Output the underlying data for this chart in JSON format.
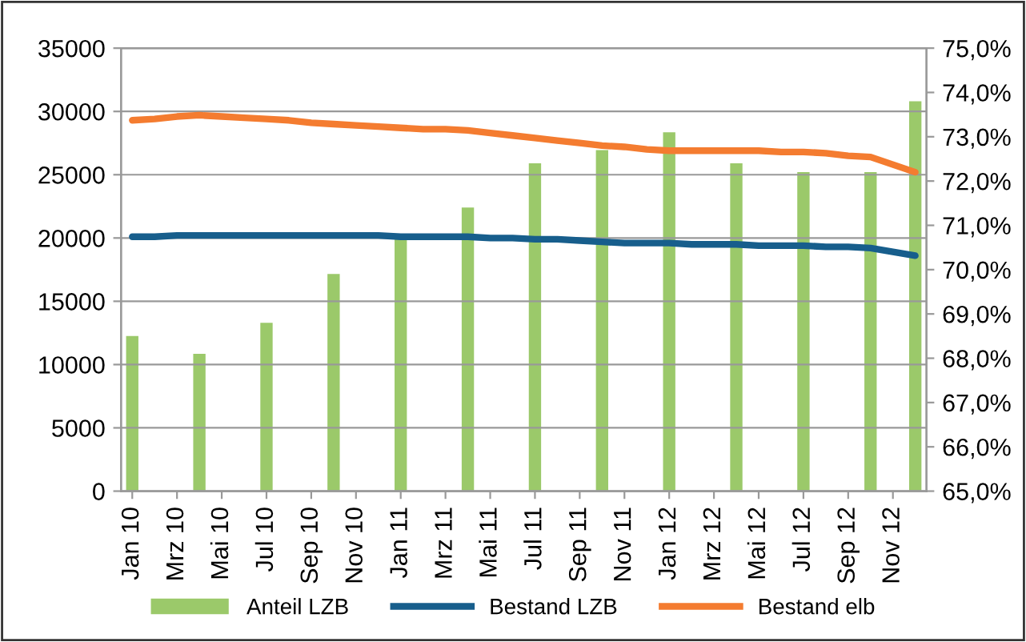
{
  "chart_data": {
    "type": "bar",
    "categories": [
      "Jan 10",
      null,
      "Mrz 10",
      null,
      "Mai 10",
      null,
      "Jul 10",
      null,
      "Sep 10",
      null,
      "Nov 10",
      null,
      "Jan 11",
      null,
      "Mrz 11",
      null,
      "Mai 11",
      null,
      "Jul 11",
      null,
      "Sep 11",
      null,
      "Nov 11",
      null,
      "Jan 12",
      null,
      "Mrz 12",
      null,
      "Mai 12",
      null,
      "Jul 12",
      null,
      "Sep 12",
      null,
      "Nov 12",
      null
    ],
    "series": [
      {
        "name": "Anteil LZB",
        "axis": "y2",
        "color": "#9bc96a",
        "values": [
          68.5,
          null,
          null,
          68.1,
          null,
          null,
          68.8,
          null,
          null,
          69.9,
          null,
          null,
          70.8,
          null,
          null,
          71.4,
          null,
          null,
          72.4,
          null,
          null,
          72.7,
          null,
          null,
          73.1,
          null,
          null,
          72.4,
          null,
          null,
          72.2,
          null,
          null,
          72.2,
          null,
          73.8
        ]
      },
      {
        "name": "Bestand LZB",
        "type": "line",
        "color": "#175e8c",
        "values": [
          20100,
          20100,
          20200,
          20200,
          20200,
          20200,
          20200,
          20200,
          20200,
          20200,
          20200,
          20200,
          20100,
          20100,
          20100,
          20100,
          20000,
          20000,
          19900,
          19900,
          19800,
          19700,
          19600,
          19600,
          19600,
          19500,
          19500,
          19500,
          19400,
          19400,
          19400,
          19300,
          19300,
          19200,
          18900,
          18600
        ]
      },
      {
        "name": "Bestand elb",
        "type": "line",
        "color": "#f47c30",
        "values": [
          29300,
          29400,
          29600,
          29700,
          29600,
          29500,
          29400,
          29300,
          29100,
          29000,
          28900,
          28800,
          28700,
          28600,
          28600,
          28500,
          28300,
          28100,
          27900,
          27700,
          27500,
          27300,
          27200,
          27000,
          26900,
          26900,
          26900,
          26900,
          26900,
          26800,
          26800,
          26700,
          26500,
          26400,
          25800,
          25200
        ]
      }
    ],
    "ylim": [
      0,
      35000
    ],
    "yticks": [
      0,
      5000,
      10000,
      15000,
      20000,
      25000,
      30000,
      35000
    ],
    "y2lim": [
      65,
      75
    ],
    "y2ticks": [
      {
        "value": 65,
        "label": "65,0%"
      },
      {
        "value": 66,
        "label": "66,0%"
      },
      {
        "value": 67,
        "label": "67,0%"
      },
      {
        "value": 68,
        "label": "68,0%"
      },
      {
        "value": 69,
        "label": "69,0%"
      },
      {
        "value": 70,
        "label": "70,0%"
      },
      {
        "value": 71,
        "label": "71,0%"
      },
      {
        "value": 72,
        "label": "72,0%"
      },
      {
        "value": 73,
        "label": "73,0%"
      },
      {
        "value": 74,
        "label": "74,0%"
      },
      {
        "value": 75,
        "label": "75,0%"
      }
    ],
    "grid": "y",
    "legend": "bottom"
  }
}
